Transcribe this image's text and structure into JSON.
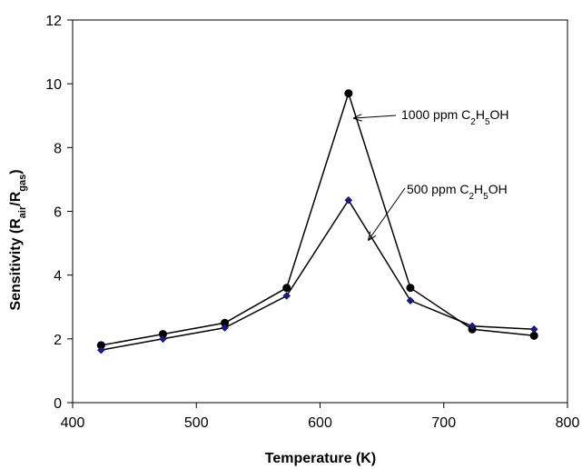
{
  "chart_data": {
    "type": "line",
    "xlabel": "Temperature (K)",
    "ylabel": {
      "prefix": "Sensitivity (R",
      "sub1": "air",
      "mid": "/R",
      "sub2": "gas",
      "suffix": ")"
    },
    "xlim": [
      400,
      800
    ],
    "ylim": [
      0,
      12
    ],
    "xticks": [
      400,
      500,
      600,
      700,
      800
    ],
    "yticks": [
      0,
      2,
      4,
      6,
      8,
      10,
      12
    ],
    "x": [
      423,
      473,
      523,
      573,
      623,
      673,
      723,
      773
    ],
    "series": [
      {
        "name_parts": [
          "1000 ppm C",
          "2",
          "H",
          "5",
          "OH"
        ],
        "values": [
          1.8,
          2.15,
          2.5,
          3.6,
          9.7,
          3.6,
          2.3,
          2.1
        ],
        "marker": "circle",
        "marker_color": "#000000",
        "line_color": "#000000"
      },
      {
        "name_parts": [
          "500 ppm C",
          "2",
          "H",
          "5",
          "OH"
        ],
        "values": [
          1.65,
          2.0,
          2.35,
          3.35,
          6.35,
          3.2,
          2.4,
          2.3
        ],
        "marker": "diamond",
        "marker_color": "#1a1a8c",
        "line_color": "#000000"
      }
    ],
    "grid": false,
    "legend": "none"
  }
}
